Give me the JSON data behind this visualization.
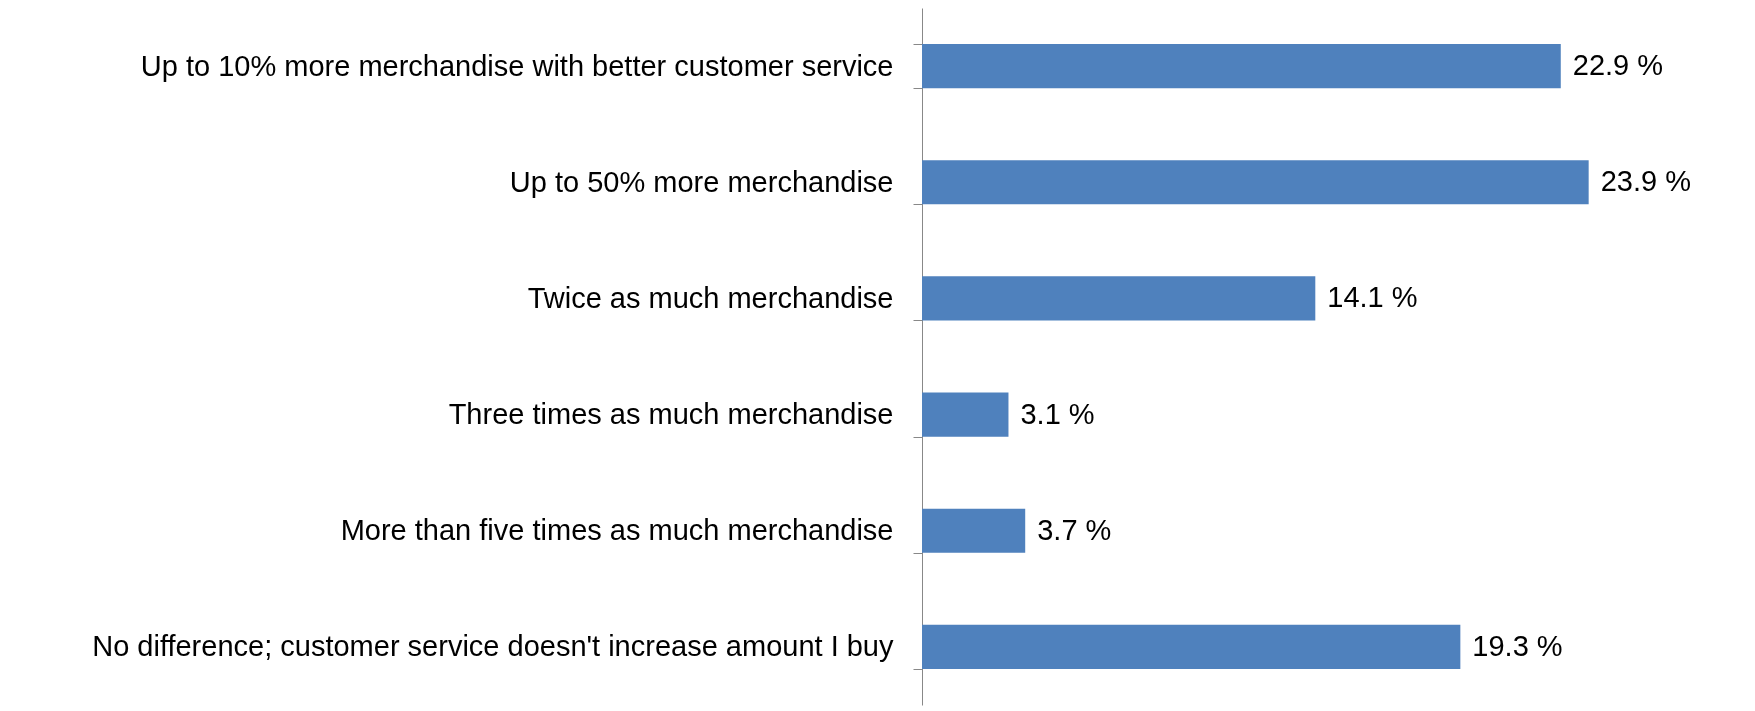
{
  "chart_data": {
    "type": "bar",
    "orientation": "horizontal",
    "categories": [
      "Up to 10% more merchandise with better customer service",
      "Up to 50% more merchandise",
      "Twice as much merchandise",
      "Three times as much merchandise",
      "More than five times as much merchandise",
      "No difference; customer service doesn't increase amount I buy"
    ],
    "values": [
      22.9,
      23.9,
      14.1,
      3.1,
      3.7,
      19.3
    ],
    "value_labels": [
      "22.9 %",
      "23.9 %",
      "14.1 %",
      "3.1 %",
      "3.7 %",
      "19.3 %"
    ],
    "color": "#4f81bd"
  }
}
